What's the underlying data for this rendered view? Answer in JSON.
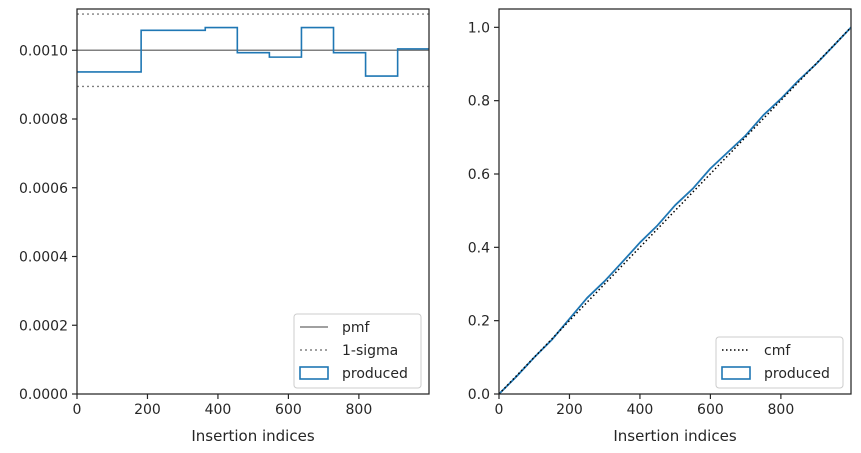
{
  "chart_data": [
    {
      "type": "line",
      "subtype": "histogram-step",
      "xlabel": "Insertion indices",
      "ylabel": "",
      "xlim": [
        0,
        999
      ],
      "ylim": [
        0,
        0.00112
      ],
      "xticks": [
        0,
        200,
        400,
        600,
        800
      ],
      "yticks": [
        0.0,
        0.0002,
        0.0004,
        0.0006,
        0.0008,
        0.001
      ],
      "ytick_labels": [
        "0.0000",
        "0.0002",
        "0.0004",
        "0.0006",
        "0.0008",
        "0.0010"
      ],
      "grid": false,
      "legend_position": "lower-right",
      "pmf": {
        "name": "pmf",
        "value": 0.001,
        "color": "#808080"
      },
      "sigma": {
        "name": "1-sigma",
        "upper": 0.0011054,
        "lower": 0.0008946,
        "color": "#808080"
      },
      "produced": {
        "name": "produced",
        "color": "#1f77b4",
        "bin_edges": [
          0,
          182,
          364,
          455,
          546,
          637,
          728,
          819,
          910,
          999
        ],
        "values": [
          0.000937,
          0.001058,
          0.001066,
          0.000993,
          0.00098,
          0.001066,
          0.000993,
          0.000925,
          0.001004
        ]
      },
      "legend": [
        "pmf",
        "1-sigma",
        "produced"
      ]
    },
    {
      "type": "line",
      "xlabel": "Insertion indices",
      "ylabel": "",
      "xlim": [
        0,
        999
      ],
      "ylim": [
        0,
        1.05
      ],
      "xticks": [
        0,
        200,
        400,
        600,
        800
      ],
      "yticks": [
        0.0,
        0.2,
        0.4,
        0.6,
        0.8,
        1.0
      ],
      "ytick_labels": [
        "0.0",
        "0.2",
        "0.4",
        "0.6",
        "0.8",
        "1.0"
      ],
      "grid": false,
      "legend_position": "lower-right",
      "cmf": {
        "name": "cmf",
        "x": [
          0,
          999
        ],
        "y": [
          0,
          1.0
        ],
        "color": "#000000"
      },
      "produced": {
        "name": "produced",
        "color": "#1f77b4",
        "x": [
          0,
          50,
          100,
          150,
          200,
          250,
          300,
          350,
          400,
          450,
          500,
          550,
          600,
          650,
          700,
          750,
          800,
          850,
          900,
          950,
          999
        ],
        "y": [
          0.0,
          0.048,
          0.1,
          0.148,
          0.205,
          0.262,
          0.308,
          0.36,
          0.413,
          0.46,
          0.515,
          0.56,
          0.615,
          0.66,
          0.705,
          0.76,
          0.805,
          0.855,
          0.9,
          0.95,
          1.0
        ]
      },
      "legend": [
        "cmf",
        "produced"
      ]
    }
  ]
}
